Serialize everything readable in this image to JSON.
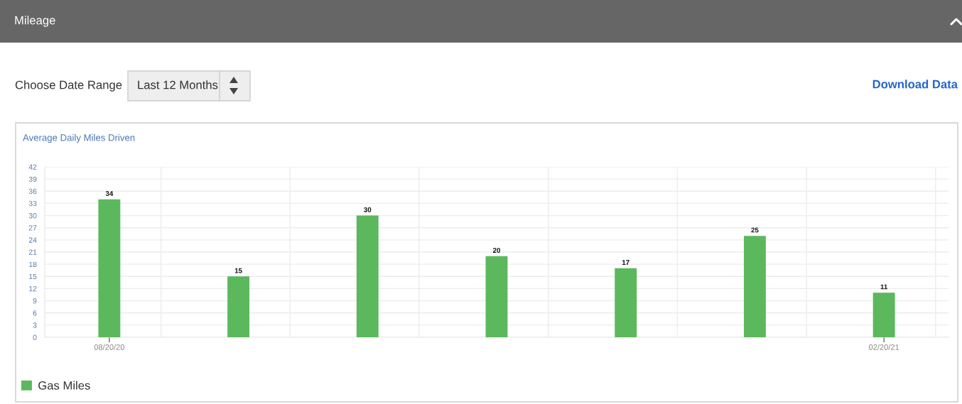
{
  "chart_data": {
    "type": "bar",
    "title": "Average Daily Miles Driven",
    "annotations": [
      "Mileage",
      "Choose Date Range",
      "Last 12 Months",
      "Download Data"
    ],
    "categories": [
      "08/20/20",
      null,
      null,
      null,
      null,
      null,
      "02/20/21"
    ],
    "series": [
      {
        "name": "Gas Miles",
        "color": "#5cb85c",
        "values": [
          34,
          15,
          30,
          20,
          17,
          25,
          11
        ]
      }
    ],
    "ylim": [
      0,
      42
    ],
    "yticks": [
      0,
      3,
      6,
      9,
      12,
      15,
      18,
      21,
      24,
      27,
      30,
      33,
      36,
      39,
      42
    ],
    "grid": true,
    "legend": "bottom left",
    "data_labels": true
  }
}
